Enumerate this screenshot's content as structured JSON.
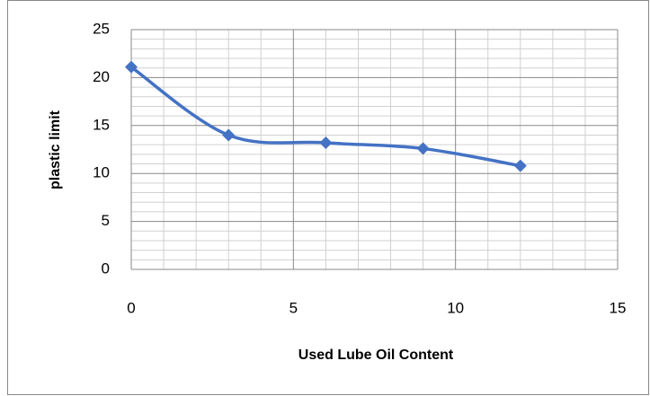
{
  "chart_data": {
    "type": "scatter",
    "smooth": true,
    "marker": "diamond",
    "x_label": "Used Lube Oil Content",
    "y_label": "plastic limit",
    "x": [
      0,
      3,
      6,
      9,
      12
    ],
    "series": [
      {
        "color": "#4472c4",
        "values": [
          21.1,
          14,
          13.2,
          12.6,
          10.8
        ]
      }
    ],
    "xlim": [
      0,
      15
    ],
    "xticks": [
      0,
      5,
      10,
      15
    ],
    "ylim": [
      0,
      25
    ],
    "yticks": [
      0,
      5,
      10,
      15,
      20,
      25
    ],
    "grid": true,
    "minor_grid": true
  }
}
